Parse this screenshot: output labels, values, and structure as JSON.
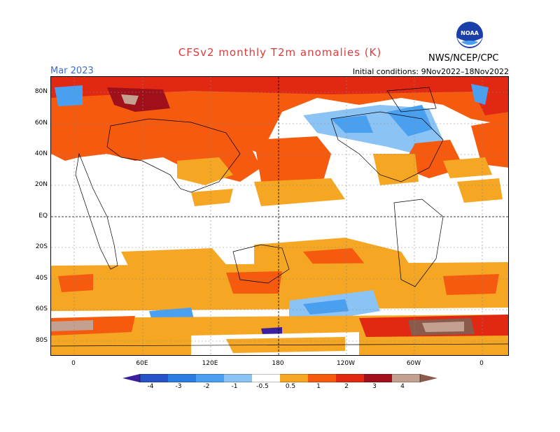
{
  "header": {
    "title": "CFSv2 monthly T2m anomalies (K)",
    "month": "Mar 2023",
    "initial_conditions": "Initial conditions: 9Nov2022–18Nov2022",
    "agency": "NWS/NCEP/CPC",
    "logo_text": "NOAA"
  },
  "axes": {
    "lat_labels": [
      "80N",
      "60N",
      "40N",
      "20N",
      "EQ",
      "20S",
      "40S",
      "60S",
      "80S"
    ],
    "lon_labels": [
      "0",
      "60E",
      "120E",
      "180",
      "120W",
      "60W",
      "0"
    ]
  },
  "colorbar": {
    "labels": [
      "-4",
      "-3",
      "-2",
      "-1",
      "-0.5",
      "0.5",
      "1",
      "2",
      "3",
      "4"
    ],
    "colors": [
      "#3b1f9e",
      "#2a52c8",
      "#2a7de0",
      "#4aa0f0",
      "#8cc3f5",
      "#ffffff",
      "#f5a623",
      "#f55a0f",
      "#e02812",
      "#a0101a",
      "#c4a090",
      "#8a5a4a"
    ]
  }
}
